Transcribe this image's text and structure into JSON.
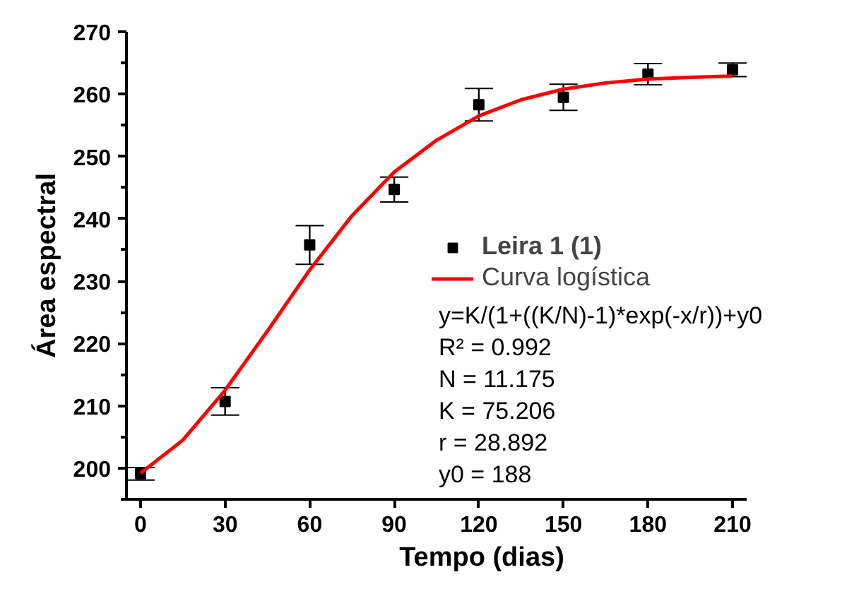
{
  "chart_data": {
    "type": "scatter",
    "xlabel": "Tempo (dias)",
    "ylabel": "Área espectral",
    "xlim": [
      -5,
      215
    ],
    "ylim": [
      195,
      270
    ],
    "xticks": [
      0,
      30,
      60,
      90,
      120,
      150,
      180,
      210
    ],
    "yticks": [
      200,
      210,
      220,
      230,
      240,
      250,
      260,
      270
    ],
    "x": [
      0,
      30,
      60,
      90,
      120,
      150,
      180,
      210
    ],
    "series": [
      {
        "name": "Leira 1 (1)",
        "color": "#000000",
        "marker": "square",
        "values": [
          199.1,
          210.7,
          235.8,
          244.7,
          258.3,
          259.5,
          263.2,
          263.9
        ],
        "errors": [
          1.0,
          2.2,
          3.1,
          2.0,
          2.6,
          2.1,
          1.7,
          1.1
        ]
      },
      {
        "name": "Curva logística",
        "type": "line",
        "color": "#ff0000",
        "line_style": "solid",
        "x": [
          0,
          15,
          30,
          45,
          60,
          75,
          90,
          105,
          120,
          135,
          150,
          165,
          180,
          195,
          210
        ],
        "values": [
          199.2,
          204.5,
          212.5,
          222.0,
          231.8,
          240.5,
          247.5,
          252.6,
          256.5,
          259.1,
          260.8,
          261.8,
          262.4,
          262.7,
          262.9
        ]
      }
    ],
    "legend": "right",
    "grid": false,
    "annotations": [
      "y=K/(1+((K/N)-1)*exp(-x/r))+y0",
      "R² = 0.992",
      "N = 11.175",
      "K = 75.206",
      "r = 28.892",
      "y0 = 188"
    ]
  }
}
